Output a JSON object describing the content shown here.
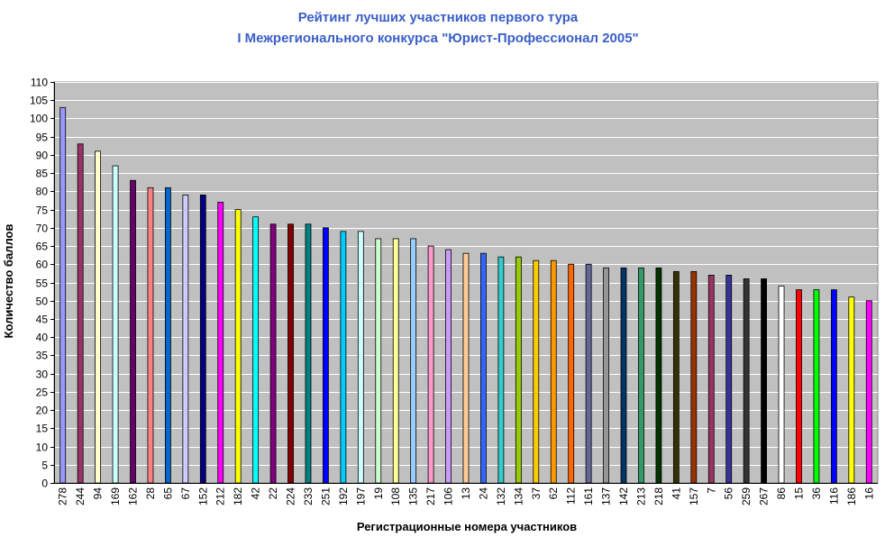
{
  "chart_data": {
    "type": "bar",
    "title": "Рейтинг лучших участников первого тура",
    "subtitle": "I Межрегионального конкурса \"Юрист-Профессионал 2005\"",
    "xlabel": "Регистрационные номера участников",
    "ylabel": "Количество баллов",
    "ylim": [
      0,
      110
    ],
    "ytick_step": 5,
    "grid": true,
    "plot_background": "#c0c0c0",
    "categories": [
      "278",
      "244",
      "94",
      "169",
      "162",
      "28",
      "65",
      "67",
      "152",
      "212",
      "182",
      "42",
      "22",
      "224",
      "233",
      "251",
      "192",
      "197",
      "19",
      "108",
      "135",
      "217",
      "106",
      "13",
      "24",
      "132",
      "134",
      "37",
      "62",
      "112",
      "161",
      "137",
      "142",
      "213",
      "218",
      "41",
      "157",
      "7",
      "56",
      "259",
      "267",
      "86",
      "15",
      "36",
      "116",
      "186",
      "16"
    ],
    "values": [
      103,
      93,
      91,
      87,
      83,
      81,
      81,
      79,
      79,
      77,
      75,
      73,
      71,
      71,
      71,
      70,
      69,
      69,
      67,
      67,
      67,
      65,
      64,
      63,
      63,
      62,
      62,
      61,
      61,
      60,
      60,
      59,
      59,
      59,
      59,
      58,
      58,
      57,
      57,
      56,
      56,
      54,
      53,
      53,
      53,
      51,
      50
    ],
    "colors": [
      "#9999ff",
      "#993366",
      "#ffffcc",
      "#ccffff",
      "#660066",
      "#ff8080",
      "#0066cc",
      "#ccccff",
      "#000080",
      "#ff00ff",
      "#ffff00",
      "#00ffff",
      "#800080",
      "#800000",
      "#008080",
      "#0000ff",
      "#00ccff",
      "#ccffff",
      "#ccffcc",
      "#ffff99",
      "#99ccff",
      "#ff99cc",
      "#cc99ff",
      "#ffcc99",
      "#3366ff",
      "#33cccc",
      "#99cc00",
      "#ffcc00",
      "#ff9900",
      "#ff6600",
      "#666699",
      "#969696",
      "#003366",
      "#339966",
      "#003300",
      "#333300",
      "#993300",
      "#993366",
      "#333399",
      "#333333",
      "#000000",
      "#ffffff",
      "#ff0000",
      "#00ff00",
      "#0000ff",
      "#ffff00",
      "#ff00ff"
    ]
  }
}
